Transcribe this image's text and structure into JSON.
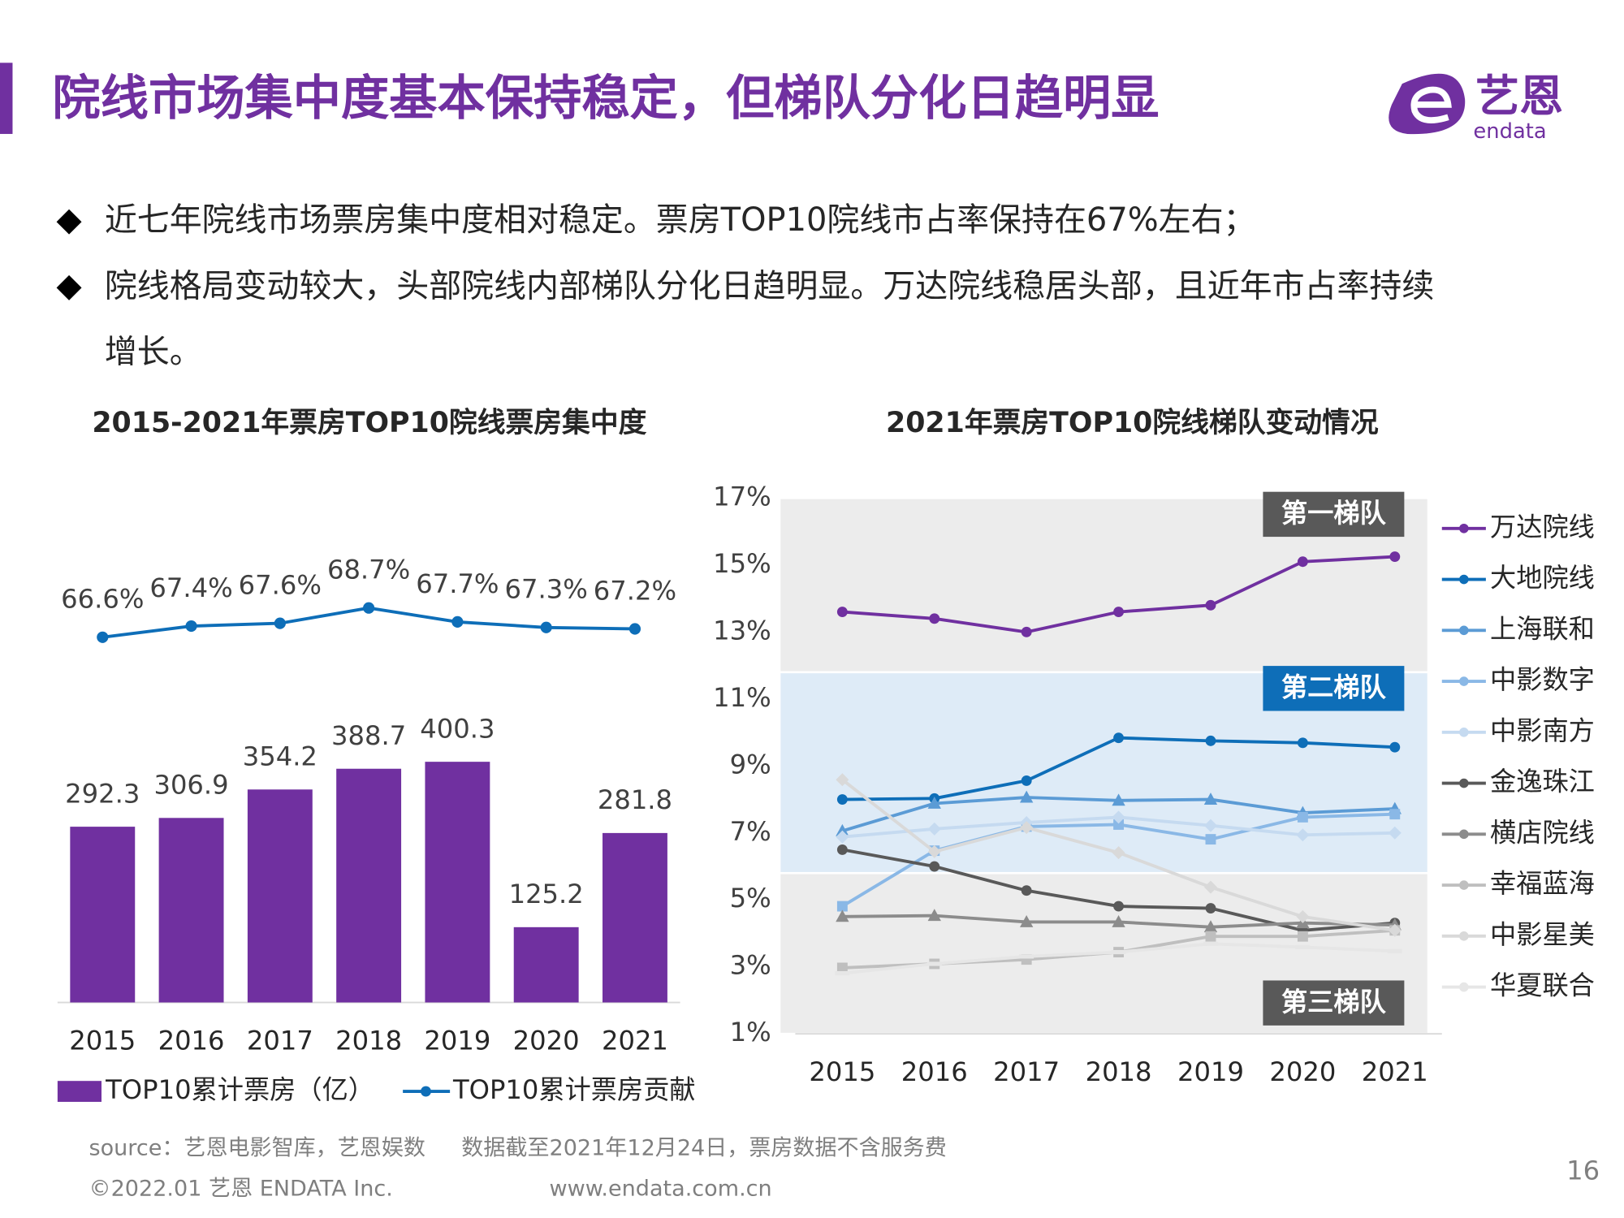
{
  "header": {
    "title": "院线市场集中度基本保持稳定，但梯队分化日趋明显",
    "logo_name": "艺恩",
    "logo_text": "endata"
  },
  "bullets": [
    [
      "近七年院线市场票房集中度相对稳定。票房TOP10院线市占率保持在67%左右；"
    ],
    [
      "院线格局变动较大，头部院线内部梯队分化日趋明显。万达院线稳居头部，且近年市占率持续",
      "增长。"
    ]
  ],
  "chart_data": [
    {
      "type": "combo",
      "title": "2015-2021年票房TOP10院线票房集中度",
      "categories": [
        "2015",
        "2016",
        "2017",
        "2018",
        "2019",
        "2020",
        "2021"
      ],
      "series": [
        {
          "name": "TOP10累计票房（亿）",
          "type": "bar",
          "color": "#7030a0",
          "values": [
            292.3,
            306.9,
            354.2,
            388.7,
            400.3,
            125.2,
            281.8
          ]
        },
        {
          "name": "TOP10累计票房贡献",
          "type": "line",
          "color": "#0e6eb8",
          "values": [
            66.6,
            67.4,
            67.6,
            68.7,
            67.7,
            67.3,
            67.2
          ],
          "value_labels": [
            "66.6%",
            "67.4%",
            "67.6%",
            "68.7%",
            "67.7%",
            "67.3%",
            "67.2%"
          ]
        }
      ]
    },
    {
      "type": "line",
      "title": "2021年票房TOP10院线梯队变动情况",
      "categories": [
        "2015",
        "2016",
        "2017",
        "2018",
        "2019",
        "2020",
        "2021"
      ],
      "ylim": [
        1,
        17
      ],
      "yticks": [
        {
          "value": 1,
          "label": "1%"
        },
        {
          "value": 3,
          "label": "3%"
        },
        {
          "value": 5,
          "label": "5%"
        },
        {
          "value": 7,
          "label": "7%"
        },
        {
          "value": 9,
          "label": "9%"
        },
        {
          "value": 11,
          "label": "11%"
        },
        {
          "value": 13,
          "label": "13%"
        },
        {
          "value": 15,
          "label": "15%"
        },
        {
          "value": 17,
          "label": "17%"
        }
      ],
      "bands": [
        {
          "label": "第一梯队",
          "range": [
            11.8,
            17
          ],
          "color": "#ececec",
          "label_color": "#595959",
          "label_position": "top"
        },
        {
          "label": "第二梯队",
          "range": [
            5.8,
            11.8
          ],
          "color": "#deebf7",
          "label_color": "#0e6eb8",
          "label_position": "top"
        },
        {
          "label": "第三梯队",
          "range": [
            1,
            5.8
          ],
          "color": "#ececec",
          "label_color": "#595959",
          "label_position": "bottom"
        }
      ],
      "series": [
        {
          "name": "万达院线",
          "color": "#7030a0",
          "marker": "circle",
          "values": [
            13.6,
            13.4,
            13.0,
            13.6,
            13.8,
            15.1,
            15.25
          ]
        },
        {
          "name": "大地院线",
          "color": "#0e6eb8",
          "marker": "circle",
          "values": [
            8.0,
            8.03,
            8.56,
            9.84,
            9.75,
            9.69,
            9.56
          ]
        },
        {
          "name": "上海联和",
          "color": "#5b9bd5",
          "marker": "triangle",
          "values": [
            7.06,
            7.88,
            8.06,
            7.97,
            8.0,
            7.6,
            7.72
          ]
        },
        {
          "name": "中影数字",
          "color": "#8ab8e6",
          "marker": "square",
          "values": [
            4.81,
            6.47,
            7.19,
            7.25,
            6.81,
            7.47,
            7.56
          ]
        },
        {
          "name": "中影南方",
          "color": "#c5daf0",
          "marker": "diamond",
          "values": [
            6.88,
            7.12,
            7.31,
            7.47,
            7.22,
            6.94,
            7.0
          ]
        },
        {
          "name": "金逸珠江",
          "color": "#595959",
          "marker": "circle",
          "values": [
            6.5,
            6.0,
            5.28,
            4.81,
            4.75,
            4.09,
            4.31
          ]
        },
        {
          "name": "横店院线",
          "color": "#8c8c8c",
          "marker": "triangle",
          "values": [
            4.5,
            4.53,
            4.34,
            4.34,
            4.19,
            4.31,
            4.25
          ]
        },
        {
          "name": "幸福蓝海",
          "color": "#bfbfbf",
          "marker": "square",
          "values": [
            2.97,
            3.09,
            3.22,
            3.44,
            3.91,
            3.91,
            4.09
          ]
        },
        {
          "name": "中影星美",
          "color": "#d9d9d9",
          "marker": "diamond",
          "values": [
            8.59,
            6.44,
            7.16,
            6.41,
            5.38,
            4.5,
            4.09
          ]
        },
        {
          "name": "华夏联合",
          "color": "#e6e6e6",
          "marker": "dash",
          "values": [
            2.81,
            3.09,
            3.31,
            3.44,
            3.69,
            3.59,
            3.47
          ]
        }
      ]
    }
  ],
  "footer": {
    "source": "source：艺恩电影智库，艺恩娱数",
    "note": "数据截至2021年12月24日，票房数据不含服务费",
    "copyright": "©2022.01 艺恩 ENDATA Inc.",
    "url": "www.endata.com.cn",
    "page": "16"
  }
}
